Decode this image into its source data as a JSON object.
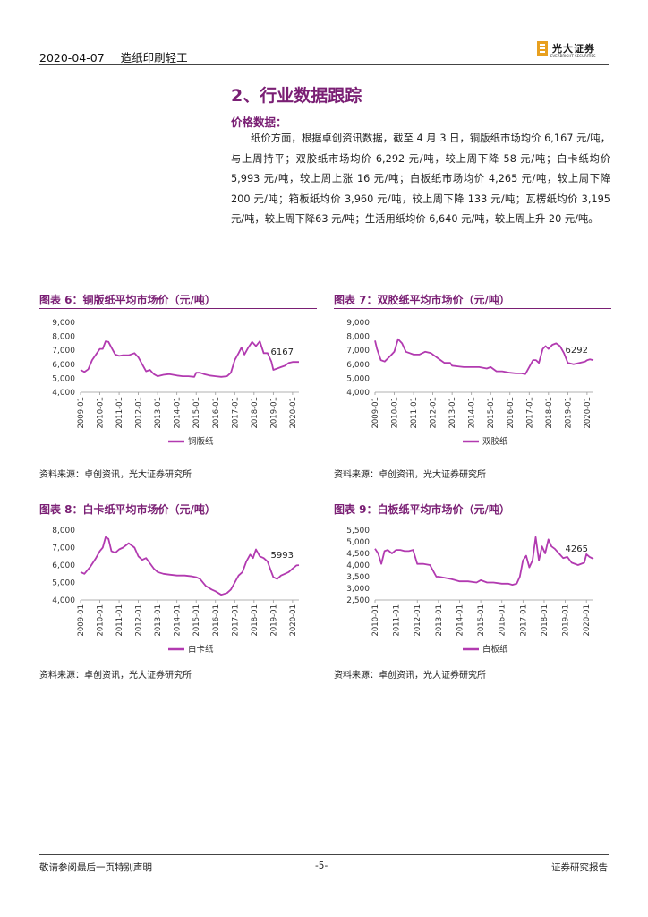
{
  "header": {
    "date": "2020-04-07",
    "industry": "造纸印刷轻工",
    "logo_cn": "光大证券",
    "logo_en": "EVERBRIGHT SECURITIES"
  },
  "section": {
    "title": "2、行业数据跟踪",
    "subtitle": "价格数据：",
    "paragraph": "纸价方面，根据卓创资讯数据，截至 4 月 3 日，铜版纸市场均价 6,167 元/吨，与上周持平；双胶纸市场均价 6,292 元/吨，较上周下降 58 元/吨；白卡纸均价 5,993 元/吨，较上周上涨 16 元/吨；白板纸市场均价 4,265 元/吨，较上周下降 200 元/吨；箱板纸均价 3,960 元/吨，较上周下降 133 元/吨；瓦楞纸均价 3,195 元/吨，较上周下降63 元/吨；生活用纸均价 6,640 元/吨，较上周上升 20 元/吨。"
  },
  "colors": {
    "accent": "#7a1f74",
    "line": "#b23ab0"
  },
  "figures": [
    {
      "title": "图表 6：铜版纸平均市场价（元/吨）",
      "source": "资料来源：卓创资讯，光大证券研究所"
    },
    {
      "title": "图表 7：双胶纸平均市场价（元/吨）",
      "source": "资料来源：卓创资讯，光大证券研究所"
    },
    {
      "title": "图表 8：白卡纸平均市场价（元/吨）",
      "source": "资料来源：卓创资讯，光大证券研究所"
    },
    {
      "title": "图表 9：白板纸平均市场价（元/吨）",
      "source": "资料来源：卓创资讯，光大证券研究所"
    }
  ],
  "chart_data": [
    {
      "type": "line",
      "title": "图表 6：铜版纸平均市场价（元/吨）",
      "legend": "铜版纸",
      "end_label": "6167",
      "ylim": [
        4000,
        9000
      ],
      "yticks": [
        "4,000",
        "5,000",
        "6,000",
        "7,000",
        "8,000",
        "9,000"
      ],
      "ytick_values": [
        4000,
        5000,
        6000,
        7000,
        8000,
        9000
      ],
      "xlim": [
        2009.0,
        2020.33
      ],
      "xticks": [
        "2009-01",
        "2010-01",
        "2011-01",
        "2012-01",
        "2013-01",
        "2014-01",
        "2015-01",
        "2016-01",
        "2017-01",
        "2018-01",
        "2019-01",
        "2020-01"
      ],
      "x": [
        2009.0,
        2009.2,
        2009.4,
        2009.6,
        2009.8,
        2010.0,
        2010.15,
        2010.3,
        2010.45,
        2010.6,
        2010.8,
        2011.0,
        2011.2,
        2011.5,
        2011.8,
        2012.0,
        2012.2,
        2012.4,
        2012.6,
        2012.8,
        2013.0,
        2013.3,
        2013.6,
        2014.0,
        2014.3,
        2014.6,
        2014.9,
        2015.0,
        2015.2,
        2015.4,
        2015.7,
        2016.0,
        2016.3,
        2016.6,
        2016.8,
        2017.0,
        2017.2,
        2017.35,
        2017.5,
        2017.7,
        2017.9,
        2018.1,
        2018.3,
        2018.5,
        2018.7,
        2018.9,
        2019.0,
        2019.2,
        2019.4,
        2019.6,
        2019.8,
        2020.0,
        2020.2,
        2020.33
      ],
      "values": [
        5600,
        5450,
        5650,
        6300,
        6700,
        7100,
        7100,
        7650,
        7600,
        7200,
        6700,
        6600,
        6650,
        6650,
        6800,
        6500,
        6000,
        5500,
        5600,
        5300,
        5150,
        5250,
        5300,
        5200,
        5150,
        5150,
        5100,
        5400,
        5400,
        5300,
        5200,
        5150,
        5100,
        5150,
        5400,
        6300,
        6800,
        7200,
        6700,
        7200,
        7600,
        7300,
        7650,
        6800,
        6800,
        6200,
        5600,
        5700,
        5800,
        5900,
        6100,
        6167,
        6167,
        6167
      ]
    },
    {
      "type": "line",
      "title": "图表 7：双胶纸平均市场价（元/吨）",
      "legend": "双胶纸",
      "end_label": "6292",
      "ylim": [
        4000,
        9000
      ],
      "yticks": [
        "4,000",
        "5,000",
        "6,000",
        "7,000",
        "8,000",
        "9,000"
      ],
      "ytick_values": [
        4000,
        5000,
        6000,
        7000,
        8000,
        9000
      ],
      "xlim": [
        2009.0,
        2020.33
      ],
      "xticks": [
        "2009-01",
        "2010-01",
        "2011-01",
        "2012-01",
        "2013-01",
        "2014-01",
        "2015-01",
        "2016-01",
        "2017-01",
        "2018-01",
        "2019-01",
        "2020-01"
      ],
      "x": [
        2009.0,
        2009.1,
        2009.3,
        2009.5,
        2009.8,
        2010.0,
        2010.2,
        2010.4,
        2010.6,
        2010.8,
        2011.0,
        2011.3,
        2011.6,
        2011.9,
        2012.2,
        2012.4,
        2012.6,
        2012.9,
        2013.0,
        2013.3,
        2013.6,
        2014.0,
        2014.4,
        2014.8,
        2015.0,
        2015.3,
        2015.6,
        2016.0,
        2016.3,
        2016.6,
        2016.8,
        2017.0,
        2017.2,
        2017.35,
        2017.5,
        2017.7,
        2017.85,
        2018.0,
        2018.2,
        2018.4,
        2018.6,
        2018.8,
        2019.0,
        2019.3,
        2019.6,
        2019.9,
        2020.0,
        2020.15,
        2020.33
      ],
      "values": [
        7700,
        7100,
        6300,
        6200,
        6600,
        6900,
        7800,
        7500,
        6900,
        6800,
        6700,
        6700,
        6900,
        6800,
        6500,
        6300,
        6100,
        6100,
        5900,
        5850,
        5800,
        5800,
        5800,
        5700,
        5800,
        5500,
        5500,
        5400,
        5350,
        5350,
        5300,
        5800,
        6300,
        6300,
        6100,
        7100,
        7300,
        7100,
        7400,
        7500,
        7300,
        6800,
        6100,
        6000,
        6100,
        6200,
        6292,
        6350,
        6292
      ]
    },
    {
      "type": "line",
      "title": "图表 8：白卡纸平均市场价（元/吨）",
      "legend": "白卡纸",
      "end_label": "5993",
      "ylim": [
        4000,
        8000
      ],
      "yticks": [
        "4,000",
        "5,000",
        "6,000",
        "7,000",
        "8,000"
      ],
      "ytick_values": [
        4000,
        5000,
        6000,
        7000,
        8000
      ],
      "xlim": [
        2009.0,
        2020.33
      ],
      "xticks": [
        "2009-01",
        "2010-01",
        "2011-01",
        "2012-01",
        "2013-01",
        "2014-01",
        "2015-01",
        "2016-01",
        "2017-01",
        "2018-01",
        "2019-01",
        "2020-01"
      ],
      "x": [
        2009.0,
        2009.2,
        2009.5,
        2009.8,
        2010.0,
        2010.15,
        2010.3,
        2010.45,
        2010.6,
        2010.8,
        2011.0,
        2011.2,
        2011.5,
        2011.8,
        2012.0,
        2012.2,
        2012.4,
        2012.6,
        2012.8,
        2013.0,
        2013.3,
        2013.6,
        2014.0,
        2014.4,
        2014.8,
        2015.0,
        2015.2,
        2015.5,
        2015.8,
        2016.0,
        2016.3,
        2016.6,
        2016.8,
        2017.0,
        2017.2,
        2017.4,
        2017.6,
        2017.8,
        2017.95,
        2018.1,
        2018.3,
        2018.5,
        2018.7,
        2018.9,
        2019.0,
        2019.2,
        2019.4,
        2019.6,
        2019.8,
        2020.0,
        2020.2,
        2020.33
      ],
      "values": [
        5600,
        5500,
        5900,
        6400,
        6800,
        7000,
        7600,
        7500,
        6800,
        6700,
        6900,
        7000,
        7250,
        7000,
        6500,
        6300,
        6400,
        6100,
        5800,
        5600,
        5500,
        5450,
        5400,
        5400,
        5350,
        5300,
        5200,
        4800,
        4600,
        4500,
        4300,
        4400,
        4600,
        5000,
        5400,
        5600,
        6200,
        6600,
        6400,
        6900,
        6500,
        6400,
        6200,
        5600,
        5300,
        5200,
        5400,
        5500,
        5600,
        5800,
        5977,
        5993
      ]
    },
    {
      "type": "line",
      "title": "图表 9：白板纸平均市场价（元/吨）",
      "legend": "白板纸",
      "end_label": "4265",
      "ylim": [
        2500,
        5500
      ],
      "yticks": [
        "2,500",
        "3,000",
        "3,500",
        "4,000",
        "4,500",
        "5,000",
        "5,500"
      ],
      "ytick_values": [
        2500,
        3000,
        3500,
        4000,
        4500,
        5000,
        5500
      ],
      "xlim": [
        2010.0,
        2020.33
      ],
      "xticks": [
        "2010-01",
        "2011-01",
        "2012-01",
        "2013-01",
        "2014-01",
        "2015-01",
        "2016-01",
        "2017-01",
        "2018-01",
        "2019-01",
        "2020-01"
      ],
      "x": [
        2010.0,
        2010.15,
        2010.3,
        2010.45,
        2010.6,
        2010.8,
        2011.0,
        2011.2,
        2011.4,
        2011.6,
        2011.8,
        2012.0,
        2012.3,
        2012.6,
        2012.9,
        2013.0,
        2013.3,
        2013.6,
        2014.0,
        2014.4,
        2014.8,
        2015.0,
        2015.3,
        2015.6,
        2016.0,
        2016.3,
        2016.5,
        2016.7,
        2016.85,
        2017.0,
        2017.15,
        2017.3,
        2017.45,
        2017.6,
        2017.75,
        2017.9,
        2018.05,
        2018.2,
        2018.35,
        2018.5,
        2018.7,
        2018.9,
        2019.1,
        2019.3,
        2019.6,
        2019.9,
        2020.0,
        2020.15,
        2020.33
      ],
      "values": [
        4700,
        4500,
        4050,
        4600,
        4650,
        4500,
        4650,
        4650,
        4600,
        4600,
        4650,
        4050,
        4050,
        4000,
        3500,
        3500,
        3450,
        3400,
        3300,
        3300,
        3250,
        3350,
        3250,
        3250,
        3200,
        3200,
        3150,
        3200,
        3500,
        4200,
        4400,
        3900,
        4200,
        5200,
        4200,
        4800,
        4500,
        5100,
        4800,
        4700,
        4500,
        4300,
        4350,
        4100,
        4000,
        4100,
        4465,
        4350,
        4265
      ]
    }
  ],
  "footer": {
    "left": "敬请参阅最后一页特别声明",
    "center": "-5-",
    "right": "证券研究报告"
  }
}
